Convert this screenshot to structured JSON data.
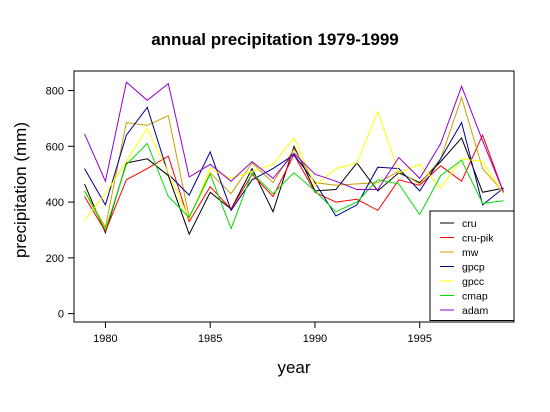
{
  "chart_data": {
    "type": "line",
    "title": "annual precipitation 1979-1999",
    "xlabel": "year",
    "ylabel": "precipitation (mm)",
    "xlim": [
      1978.5,
      1999.5
    ],
    "ylim": [
      -30,
      870
    ],
    "xticks": [
      1980,
      1985,
      1990,
      1995
    ],
    "yticks": [
      0,
      200,
      400,
      600,
      800
    ],
    "legend_position": "bottom-right",
    "x": [
      1979,
      1980,
      1981,
      1982,
      1983,
      1984,
      1985,
      1986,
      1987,
      1988,
      1989,
      1990,
      1991,
      1992,
      1993,
      1994,
      1995,
      1996,
      1997,
      1998,
      1999
    ],
    "series": [
      {
        "name": "cru",
        "color": "#000000",
        "values": [
          465,
          290,
          540,
          555,
          495,
          285,
          435,
          375,
          520,
          365,
          600,
          440,
          445,
          540,
          440,
          505,
          470,
          545,
          630,
          435,
          450
        ]
      },
      {
        "name": "cru-pik",
        "color": "#ff0000",
        "values": [
          420,
          295,
          480,
          520,
          565,
          330,
          455,
          375,
          500,
          420,
          570,
          435,
          400,
          410,
          370,
          480,
          460,
          530,
          475,
          640,
          435
        ]
      },
      {
        "name": "mw",
        "color": "#c8a000",
        "values": [
          440,
          310,
          685,
          675,
          710,
          345,
          505,
          430,
          540,
          470,
          590,
          470,
          460,
          465,
          470,
          510,
          465,
          555,
          775,
          520,
          435
        ]
      },
      {
        "name": "gpcp",
        "color": "#00008b",
        "values": [
          520,
          390,
          640,
          740,
          500,
          425,
          580,
          370,
          480,
          520,
          570,
          470,
          350,
          390,
          525,
          520,
          440,
          555,
          685,
          390,
          450
        ]
      },
      {
        "name": "gpcc",
        "color": "#ffff00",
        "values": [
          335,
          430,
          545,
          665,
          505,
          340,
          520,
          485,
          510,
          535,
          630,
          460,
          520,
          540,
          725,
          505,
          535,
          450,
          555,
          545,
          430
        ]
      },
      {
        "name": "cmap",
        "color": "#00dd00",
        "values": [
          440,
          300,
          535,
          610,
          420,
          345,
          500,
          305,
          505,
          430,
          505,
          440,
          365,
          400,
          480,
          465,
          355,
          495,
          550,
          395,
          405
        ]
      },
      {
        "name": "adam",
        "color": "#9400d3",
        "values": [
          645,
          475,
          830,
          765,
          825,
          490,
          535,
          475,
          545,
          485,
          575,
          500,
          475,
          445,
          445,
          560,
          485,
          610,
          815,
          620,
          435
        ]
      }
    ]
  }
}
